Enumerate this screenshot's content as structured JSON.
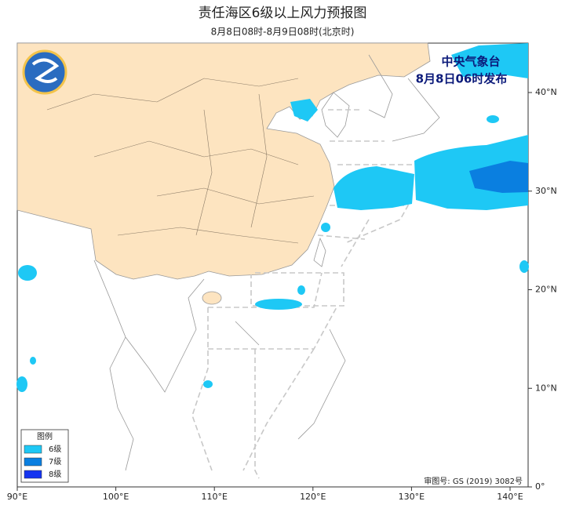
{
  "title": "责任海区6级以上风力预报图",
  "subtitle": "8月8日08时-8月9日08时(北京时)",
  "issuer": {
    "name": "中央气象台",
    "time": "8月8日06时发布"
  },
  "axes": {
    "x_labels": [
      "90°E",
      "100°E",
      "110°E",
      "120°E",
      "130°E",
      "140°E"
    ],
    "y_labels": [
      "0°",
      "10°N",
      "20°N",
      "30°N",
      "40°N"
    ]
  },
  "legend": {
    "title": "图例",
    "items": [
      {
        "label": "6级",
        "color": "#1ec8f5"
      },
      {
        "label": "7级",
        "color": "#0a7fe0"
      },
      {
        "label": "8级",
        "color": "#1434f0"
      }
    ]
  },
  "approval": "审图号: GS (2019) 3082号"
}
